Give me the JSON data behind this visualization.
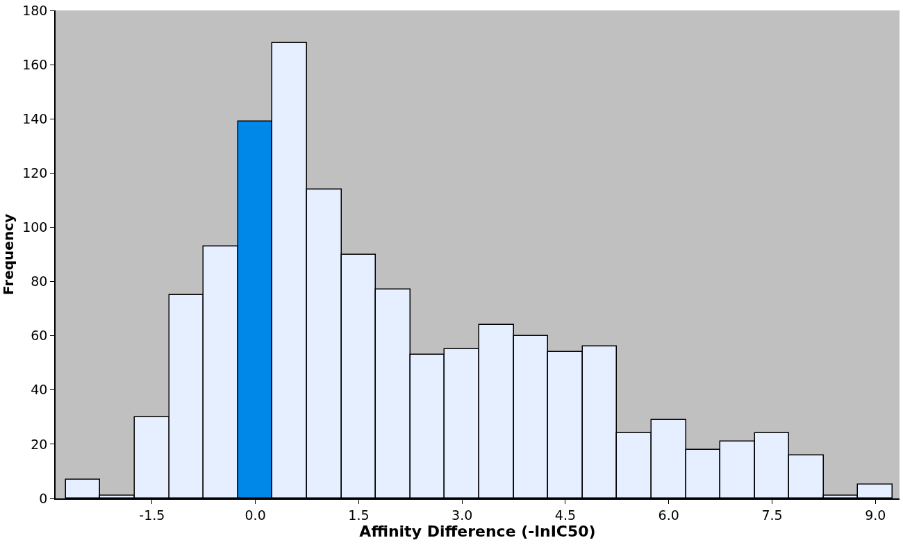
{
  "chart_data": {
    "type": "histogram",
    "xlabel": "Affinity Difference (-lnIC50)",
    "ylabel": "Frequency",
    "bins": [
      -2.75,
      -2.25,
      -1.75,
      -1.25,
      -0.75,
      -0.25,
      0.25,
      0.75,
      1.25,
      1.75,
      2.25,
      2.75,
      3.25,
      3.75,
      4.25,
      4.75,
      5.25,
      5.75,
      6.25,
      6.75,
      7.25,
      7.75,
      8.25,
      8.75,
      9.25
    ],
    "values": [
      7,
      1,
      30,
      75,
      93,
      139,
      168,
      114,
      90,
      77,
      53,
      55,
      64,
      60,
      54,
      56,
      24,
      29,
      18,
      21,
      24,
      16,
      1,
      5
    ],
    "colors": [
      "#e6efff",
      "#e6efff",
      "#e6efff",
      "#e6efff",
      "#e6efff",
      "#0088e8",
      "#e6efff",
      "#e6efff",
      "#e6efff",
      "#e6efff",
      "#e6efff",
      "#e6efff",
      "#e6efff",
      "#e6efff",
      "#e6efff",
      "#e6efff",
      "#e6efff",
      "#e6efff",
      "#e6efff",
      "#e6efff",
      "#e6efff",
      "#e6efff",
      "#e6efff",
      "#e6efff"
    ],
    "xlim": [
      -2.9,
      9.35
    ],
    "ylim": [
      0,
      180
    ],
    "xticks": [
      -1.5,
      {
        "value": 0.0,
        "label": "0.0"
      },
      1.5,
      {
        "value": 3.0,
        "label": "3.0"
      },
      4.5,
      {
        "value": 6.0,
        "label": "6.0"
      },
      7.5,
      {
        "value": 9.0,
        "label": "9.0"
      }
    ],
    "yticks": [
      0,
      20,
      40,
      60,
      80,
      100,
      120,
      140,
      160,
      180
    ],
    "grid": false
  }
}
